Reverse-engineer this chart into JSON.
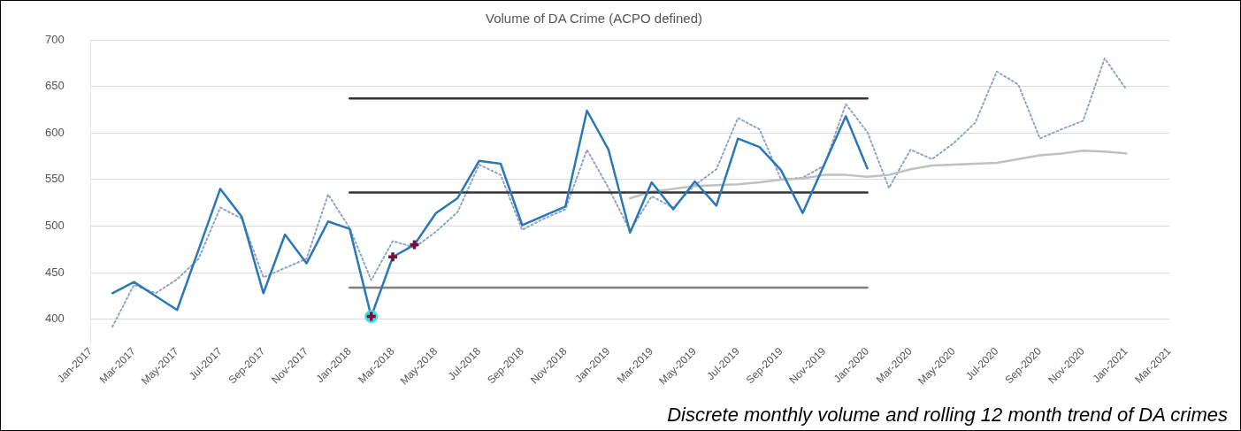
{
  "chart_data": {
    "type": "line",
    "title": "Volume of DA Crime (ACPO defined)",
    "categories": [
      "Jan-2017",
      null,
      "Mar-2017",
      null,
      "May-2017",
      null,
      "Jul-2017",
      null,
      "Sep-2017",
      null,
      "Nov-2017",
      null,
      "Jan-2018",
      null,
      "Mar-2018",
      null,
      "May-2018",
      null,
      "Jul-2018",
      null,
      "Sep-2018",
      null,
      "Nov-2018",
      null,
      "Jan-2019",
      null,
      "Mar-2019",
      null,
      "May-2019",
      null,
      "Jul-2019",
      null,
      "Sep-2019",
      null,
      "Nov-2019",
      null,
      "Jan-2020",
      null,
      "Mar-2020",
      null,
      "May-2020",
      null,
      "Jul-2020",
      null,
      "Sep-2020",
      null,
      "Nov-2020",
      null,
      "Jan-2021",
      null,
      "Mar-2021"
    ],
    "series": [
      {
        "type": "line",
        "color": "#90a4c8",
        "line_style": "dotted",
        "marker": "none",
        "values": [
          null,
          392,
          437,
          428,
          443,
          465,
          520,
          508,
          445,
          455,
          465,
          534,
          498,
          442,
          484,
          477,
          494,
          515,
          566,
          555,
          496,
          508,
          518,
          582,
          541,
          495,
          532,
          520,
          544,
          561,
          616,
          604,
          550,
          552,
          565,
          631,
          601,
          541,
          582,
          572,
          589,
          611,
          666,
          652,
          594,
          604,
          613,
          680,
          647,
          null,
          null
        ]
      },
      {
        "type": "line",
        "color": "#c0c0c0",
        "line_style": "solid",
        "marker": "none",
        "values": [
          null,
          null,
          null,
          null,
          null,
          null,
          null,
          null,
          null,
          null,
          null,
          null,
          null,
          null,
          null,
          null,
          null,
          null,
          null,
          null,
          null,
          null,
          null,
          null,
          null,
          530,
          537,
          540,
          543,
          544,
          545,
          547,
          550,
          551,
          555,
          555,
          553,
          555,
          561,
          565,
          566,
          567,
          568,
          572,
          576,
          578,
          581,
          580,
          578,
          null,
          null
        ]
      },
      {
        "type": "line",
        "color": "#333333",
        "line_style": "solid",
        "marker": "none",
        "values": [
          null,
          null,
          null,
          null,
          null,
          null,
          null,
          null,
          null,
          null,
          null,
          null,
          637,
          637,
          637,
          637,
          637,
          637,
          637,
          637,
          637,
          637,
          637,
          637,
          637,
          637,
          637,
          637,
          637,
          637,
          637,
          637,
          637,
          637,
          637,
          637,
          637,
          null,
          null,
          null,
          null,
          null,
          null,
          null,
          null,
          null,
          null,
          null,
          null,
          null,
          null
        ]
      },
      {
        "type": "line",
        "color": "#333333",
        "line_style": "solid",
        "marker": "none",
        "values": [
          null,
          null,
          null,
          null,
          null,
          null,
          null,
          null,
          null,
          null,
          null,
          null,
          536,
          536,
          536,
          536,
          536,
          536,
          536,
          536,
          536,
          536,
          536,
          536,
          536,
          536,
          536,
          536,
          536,
          536,
          536,
          536,
          536,
          536,
          536,
          536,
          536,
          null,
          null,
          null,
          null,
          null,
          null,
          null,
          null,
          null,
          null,
          null,
          null,
          null,
          null
        ]
      },
      {
        "type": "line",
        "color": "#808080",
        "line_style": "solid",
        "marker": "none",
        "values": [
          null,
          null,
          null,
          null,
          null,
          null,
          null,
          null,
          null,
          null,
          null,
          null,
          434,
          434,
          434,
          434,
          434,
          434,
          434,
          434,
          434,
          434,
          434,
          434,
          434,
          434,
          434,
          434,
          434,
          434,
          434,
          434,
          434,
          434,
          434,
          434,
          434,
          null,
          null,
          null,
          null,
          null,
          null,
          null,
          null,
          null,
          null,
          null,
          null,
          null,
          null
        ]
      },
      {
        "type": "line",
        "color": "#2a78b8",
        "line_style": "solid",
        "marker": "none",
        "values": [
          null,
          428,
          440,
          425,
          410,
          475,
          540,
          510,
          428,
          491,
          460,
          505,
          497,
          403,
          467,
          480,
          514,
          530,
          570,
          567,
          501,
          511,
          521,
          624,
          582,
          493,
          547,
          518,
          548,
          522,
          594,
          585,
          560,
          514,
          566,
          618,
          562,
          null,
          null,
          null,
          null,
          null,
          null,
          null,
          null,
          null,
          null,
          null,
          null,
          null,
          null
        ]
      },
      {
        "type": "scatter",
        "color": "#3ee0e0",
        "marker": "circle",
        "values": [
          null,
          null,
          null,
          null,
          null,
          null,
          null,
          null,
          null,
          null,
          null,
          null,
          null,
          403,
          null,
          null,
          null,
          null,
          null,
          null,
          null,
          null,
          null,
          null,
          null,
          null,
          null,
          null,
          null,
          null,
          null,
          null,
          null,
          null,
          null,
          null,
          null,
          null,
          null,
          null,
          null,
          null,
          null,
          null,
          null,
          null,
          null,
          null,
          null,
          null,
          null
        ]
      },
      {
        "type": "scatter",
        "color": "#7a0e3c",
        "marker": "cross",
        "values": [
          null,
          null,
          null,
          null,
          null,
          null,
          null,
          null,
          null,
          null,
          null,
          null,
          null,
          403,
          467,
          480,
          null,
          null,
          null,
          null,
          null,
          null,
          null,
          null,
          null,
          null,
          null,
          null,
          null,
          null,
          null,
          null,
          null,
          null,
          null,
          null,
          null,
          null,
          null,
          null,
          null,
          null,
          null,
          null,
          null,
          null,
          null,
          null,
          null,
          null,
          null
        ]
      }
    ],
    "ylim": [
      375,
      700
    ],
    "yticks": [
      400,
      450,
      500,
      550,
      600,
      650,
      700
    ],
    "grid": "y",
    "legend": false,
    "annotations": [
      "Discrete monthly volume and rolling 12 month trend of DA crimes"
    ]
  }
}
